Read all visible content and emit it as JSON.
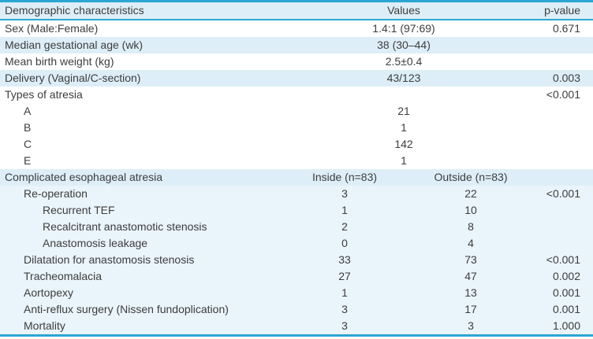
{
  "colors": {
    "border_teal": "#2ba6d3",
    "row_shade_strong": "#ddeef8",
    "row_shade_light": "#eaf4fb",
    "text": "#3d3d3d"
  },
  "table": {
    "header": {
      "characteristics": "Demographic characteristics",
      "values": "Values",
      "pvalue": "p-value"
    },
    "rows": [
      {
        "label": "Sex (Male:Female)",
        "value": "1.4:1 (97:69)",
        "p": "0.671"
      },
      {
        "label": "Median gestational age (wk)",
        "value": "38 (30–44)",
        "p": ""
      },
      {
        "label": "Mean birth weight (kg)",
        "value": "2.5±0.4",
        "p": ""
      },
      {
        "label": "Delivery (Vaginal/C-section)",
        "value": "43/123",
        "p": "0.003"
      },
      {
        "label": "Types of atresia",
        "value": "",
        "p": "<0.001"
      },
      {
        "label": "A",
        "value": "21",
        "p": ""
      },
      {
        "label": "B",
        "value": "1",
        "p": ""
      },
      {
        "label": "C",
        "value": "142",
        "p": ""
      },
      {
        "label": "E",
        "value": "1",
        "p": ""
      },
      {
        "label": "Complicated esophageal atresia",
        "inside": "Inside (n=83)",
        "outside": "Outside (n=83)",
        "p": ""
      },
      {
        "label": "Re-operation",
        "inside": "3",
        "outside": "22",
        "p": "<0.001"
      },
      {
        "label": "Recurrent TEF",
        "inside": "1",
        "outside": "10",
        "p": ""
      },
      {
        "label": "Recalcitrant anastomotic stenosis",
        "inside": "2",
        "outside": "8",
        "p": ""
      },
      {
        "label": "Anastomosis leakage",
        "inside": "0",
        "outside": "4",
        "p": ""
      },
      {
        "label": "Dilatation for anastomosis stenosis",
        "inside": "33",
        "outside": "73",
        "p": "<0.001"
      },
      {
        "label": "Tracheomalacia",
        "inside": "27",
        "outside": "47",
        "p": "0.002"
      },
      {
        "label": "Aortopexy",
        "inside": "1",
        "outside": "13",
        "p": "0.001"
      },
      {
        "label": "Anti-reflux surgery (Nissen fundoplication)",
        "inside": "3",
        "outside": "17",
        "p": "0.001"
      },
      {
        "label": "Mortality",
        "inside": "3",
        "outside": "3",
        "p": "1.000"
      }
    ]
  }
}
